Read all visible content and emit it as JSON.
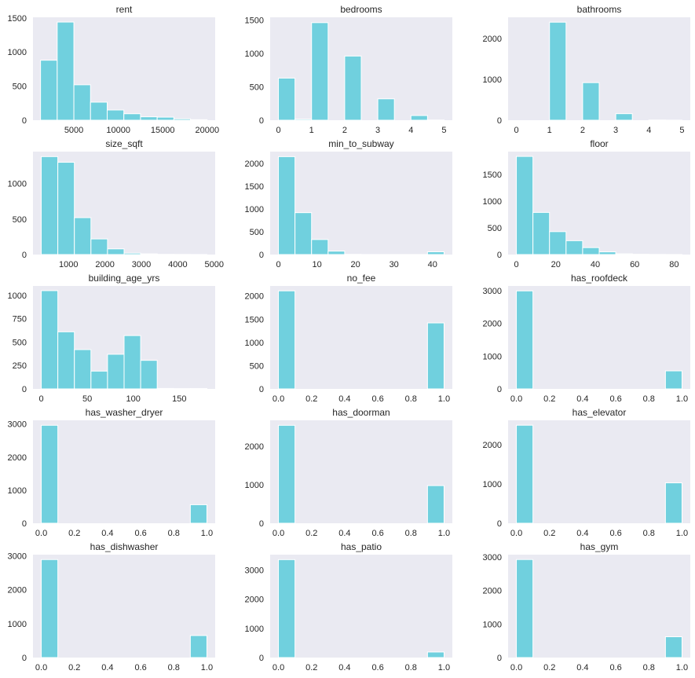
{
  "chart_data": {
    "type": "bar",
    "description": "Grid of 15 histograms (5 rows x 3 columns), 10 bins each",
    "bar_color": "#70d0de",
    "background_color": "#eaeaf2",
    "grid": false,
    "subplots": [
      {
        "title": "rent",
        "xlim": [
          400,
          20900
        ],
        "ylim": [
          0,
          1510
        ],
        "xticks": [
          5000,
          10000,
          15000,
          20000
        ],
        "xtick_labels": [
          "5000",
          "10000",
          "15000",
          "20000"
        ],
        "yticks": [
          0,
          500,
          1000,
          1500
        ],
        "ytick_labels": [
          "0",
          "500",
          "1000",
          "1500"
        ],
        "bin_range": [
          1250,
          20000
        ],
        "counts": [
          880,
          1440,
          520,
          265,
          150,
          95,
          50,
          45,
          20,
          8
        ]
      },
      {
        "title": "bedrooms",
        "xlim": [
          -0.25,
          5.25
        ],
        "ylim": [
          0,
          1540
        ],
        "xticks": [
          0,
          1,
          2,
          3,
          4,
          5
        ],
        "xtick_labels": [
          "0",
          "1",
          "2",
          "3",
          "4",
          "5"
        ],
        "yticks": [
          0,
          500,
          1000,
          1500
        ],
        "ytick_labels": [
          "0",
          "500",
          "1000",
          "1500"
        ],
        "bin_range": [
          0,
          5
        ],
        "counts": [
          630,
          15,
          1460,
          0,
          960,
          0,
          320,
          0,
          70,
          3
        ]
      },
      {
        "title": "bathrooms",
        "xlim": [
          -0.25,
          5.25
        ],
        "ylim": [
          0,
          2520
        ],
        "xticks": [
          0,
          1,
          2,
          3,
          4,
          5
        ],
        "xtick_labels": [
          "0",
          "1",
          "2",
          "3",
          "4",
          "5"
        ],
        "yticks": [
          0,
          1000,
          2000
        ],
        "ytick_labels": [
          "0",
          "1000",
          "2000"
        ],
        "bin_range": [
          0,
          5
        ],
        "counts": [
          0,
          0,
          2400,
          0,
          920,
          0,
          160,
          0,
          5,
          2
        ]
      },
      {
        "title": "size_sqft",
        "xlim": [
          23,
          5027
        ],
        "ylim": [
          0,
          1450
        ],
        "xticks": [
          1000,
          2000,
          3000,
          4000,
          5000
        ],
        "xtick_labels": [
          "1000",
          "2000",
          "3000",
          "4000",
          "5000"
        ],
        "yticks": [
          0,
          500,
          1000
        ],
        "ytick_labels": [
          "0",
          "500",
          "1000"
        ],
        "bin_range": [
          250,
          4800
        ],
        "counts": [
          1380,
          1300,
          520,
          220,
          80,
          20,
          10,
          3,
          2,
          1
        ]
      },
      {
        "title": "min_to_subway",
        "xlim": [
          -2.15,
          45.15
        ],
        "ylim": [
          0,
          2260
        ],
        "xticks": [
          0,
          10,
          20,
          30,
          40
        ],
        "xtick_labels": [
          "0",
          "10",
          "20",
          "30",
          "40"
        ],
        "yticks": [
          0,
          500,
          1000,
          1500,
          2000
        ],
        "ytick_labels": [
          "0",
          "500",
          "1000",
          "1500",
          "2000"
        ],
        "bin_range": [
          0,
          43
        ],
        "counts": [
          2150,
          920,
          330,
          75,
          5,
          2,
          1,
          1,
          1,
          60
        ]
      },
      {
        "title": "floor",
        "xlim": [
          -4.2,
          88.2
        ],
        "ylim": [
          0,
          1930
        ],
        "xticks": [
          0,
          20,
          40,
          60,
          80
        ],
        "xtick_labels": [
          "0",
          "20",
          "40",
          "60",
          "80"
        ],
        "yticks": [
          0,
          500,
          1000,
          1500
        ],
        "ytick_labels": [
          "0",
          "500",
          "1000",
          "1500"
        ],
        "bin_range": [
          0,
          84
        ],
        "counts": [
          1840,
          790,
          430,
          260,
          130,
          50,
          15,
          5,
          2,
          1
        ]
      },
      {
        "title": "building_age_yrs",
        "xlim": [
          -9,
          189
        ],
        "ylim": [
          0,
          1100
        ],
        "xticks": [
          0,
          50,
          100,
          150
        ],
        "xtick_labels": [
          "0",
          "50",
          "100",
          "150"
        ],
        "yticks": [
          0,
          250,
          500,
          750,
          1000
        ],
        "ytick_labels": [
          "0",
          "250",
          "500",
          "750",
          "1000"
        ],
        "bin_range": [
          0,
          180
        ],
        "counts": [
          1050,
          610,
          420,
          190,
          370,
          570,
          305,
          5,
          3,
          4
        ]
      },
      {
        "title": "no_fee",
        "xlim": [
          -0.05,
          1.05
        ],
        "ylim": [
          0,
          2215
        ],
        "xticks": [
          0.0,
          0.2,
          0.4,
          0.6,
          0.8,
          1.0
        ],
        "xtick_labels": [
          "0.0",
          "0.2",
          "0.4",
          "0.6",
          "0.8",
          "1.0"
        ],
        "yticks": [
          0,
          500,
          1000,
          1500,
          2000
        ],
        "ytick_labels": [
          "0",
          "500",
          "1000",
          "1500",
          "2000"
        ],
        "bin_range": [
          0,
          1
        ],
        "counts": [
          2110,
          0,
          0,
          0,
          0,
          0,
          0,
          0,
          0,
          1420
        ]
      },
      {
        "title": "has_roofdeck",
        "xlim": [
          -0.05,
          1.05
        ],
        "ylim": [
          0,
          3140
        ],
        "xticks": [
          0.0,
          0.2,
          0.4,
          0.6,
          0.8,
          1.0
        ],
        "xtick_labels": [
          "0.0",
          "0.2",
          "0.4",
          "0.6",
          "0.8",
          "1.0"
        ],
        "yticks": [
          0,
          1000,
          2000,
          3000
        ],
        "ytick_labels": [
          "0",
          "1000",
          "2000",
          "3000"
        ],
        "bin_range": [
          0,
          1
        ],
        "counts": [
          2990,
          0,
          0,
          0,
          0,
          0,
          0,
          0,
          0,
          550
        ]
      },
      {
        "title": "has_washer_dryer",
        "xlim": [
          -0.05,
          1.05
        ],
        "ylim": [
          0,
          3110
        ],
        "xticks": [
          0.0,
          0.2,
          0.4,
          0.6,
          0.8,
          1.0
        ],
        "xtick_labels": [
          "0.0",
          "0.2",
          "0.4",
          "0.6",
          "0.8",
          "1.0"
        ],
        "yticks": [
          0,
          1000,
          2000,
          3000
        ],
        "ytick_labels": [
          "0",
          "1000",
          "2000",
          "3000"
        ],
        "bin_range": [
          0,
          1
        ],
        "counts": [
          2960,
          0,
          0,
          0,
          0,
          0,
          0,
          0,
          0,
          560
        ]
      },
      {
        "title": "has_doorman",
        "xlim": [
          -0.05,
          1.05
        ],
        "ylim": [
          0,
          2680
        ],
        "xticks": [
          0.0,
          0.2,
          0.4,
          0.6,
          0.8,
          1.0
        ],
        "xtick_labels": [
          "0.0",
          "0.2",
          "0.4",
          "0.6",
          "0.8",
          "1.0"
        ],
        "yticks": [
          0,
          1000,
          2000
        ],
        "ytick_labels": [
          "0",
          "1000",
          "2000"
        ],
        "bin_range": [
          0,
          1
        ],
        "counts": [
          2550,
          0,
          0,
          0,
          0,
          0,
          0,
          0,
          0,
          980
        ]
      },
      {
        "title": "has_elevator",
        "xlim": [
          -0.05,
          1.05
        ],
        "ylim": [
          0,
          2625
        ],
        "xticks": [
          0.0,
          0.2,
          0.4,
          0.6,
          0.8,
          1.0
        ],
        "xtick_labels": [
          "0.0",
          "0.2",
          "0.4",
          "0.6",
          "0.8",
          "1.0"
        ],
        "yticks": [
          0,
          1000,
          2000
        ],
        "ytick_labels": [
          "0",
          "1000",
          "2000"
        ],
        "bin_range": [
          0,
          1
        ],
        "counts": [
          2500,
          0,
          0,
          0,
          0,
          0,
          0,
          0,
          0,
          1030
        ]
      },
      {
        "title": "has_dishwasher",
        "xlim": [
          -0.05,
          1.05
        ],
        "ylim": [
          0,
          3035
        ],
        "xticks": [
          0.0,
          0.2,
          0.4,
          0.6,
          0.8,
          1.0
        ],
        "xtick_labels": [
          "0.0",
          "0.2",
          "0.4",
          "0.6",
          "0.8",
          "1.0"
        ],
        "yticks": [
          0,
          1000,
          2000,
          3000
        ],
        "ytick_labels": [
          "0",
          "1000",
          "2000",
          "3000"
        ],
        "bin_range": [
          0,
          1
        ],
        "counts": [
          2890,
          0,
          0,
          0,
          0,
          0,
          0,
          0,
          0,
          650
        ]
      },
      {
        "title": "has_patio",
        "xlim": [
          -0.05,
          1.05
        ],
        "ylim": [
          0,
          3520
        ],
        "xticks": [
          0.0,
          0.2,
          0.4,
          0.6,
          0.8,
          1.0
        ],
        "xtick_labels": [
          "0.0",
          "0.2",
          "0.4",
          "0.6",
          "0.8",
          "1.0"
        ],
        "yticks": [
          0,
          1000,
          2000,
          3000
        ],
        "ytick_labels": [
          "0",
          "1000",
          "2000",
          "3000"
        ],
        "bin_range": [
          0,
          1
        ],
        "counts": [
          3350,
          0,
          0,
          0,
          0,
          0,
          0,
          0,
          0,
          190
        ]
      },
      {
        "title": "has_gym",
        "xlim": [
          -0.05,
          1.05
        ],
        "ylim": [
          0,
          3065
        ],
        "xticks": [
          0.0,
          0.2,
          0.4,
          0.6,
          0.8,
          1.0
        ],
        "xtick_labels": [
          "0.0",
          "0.2",
          "0.4",
          "0.6",
          "0.8",
          "1.0"
        ],
        "yticks": [
          0,
          1000,
          2000,
          3000
        ],
        "ytick_labels": [
          "0",
          "1000",
          "2000",
          "3000"
        ],
        "bin_range": [
          0,
          1
        ],
        "counts": [
          2920,
          0,
          0,
          0,
          0,
          0,
          0,
          0,
          0,
          620
        ]
      }
    ]
  }
}
